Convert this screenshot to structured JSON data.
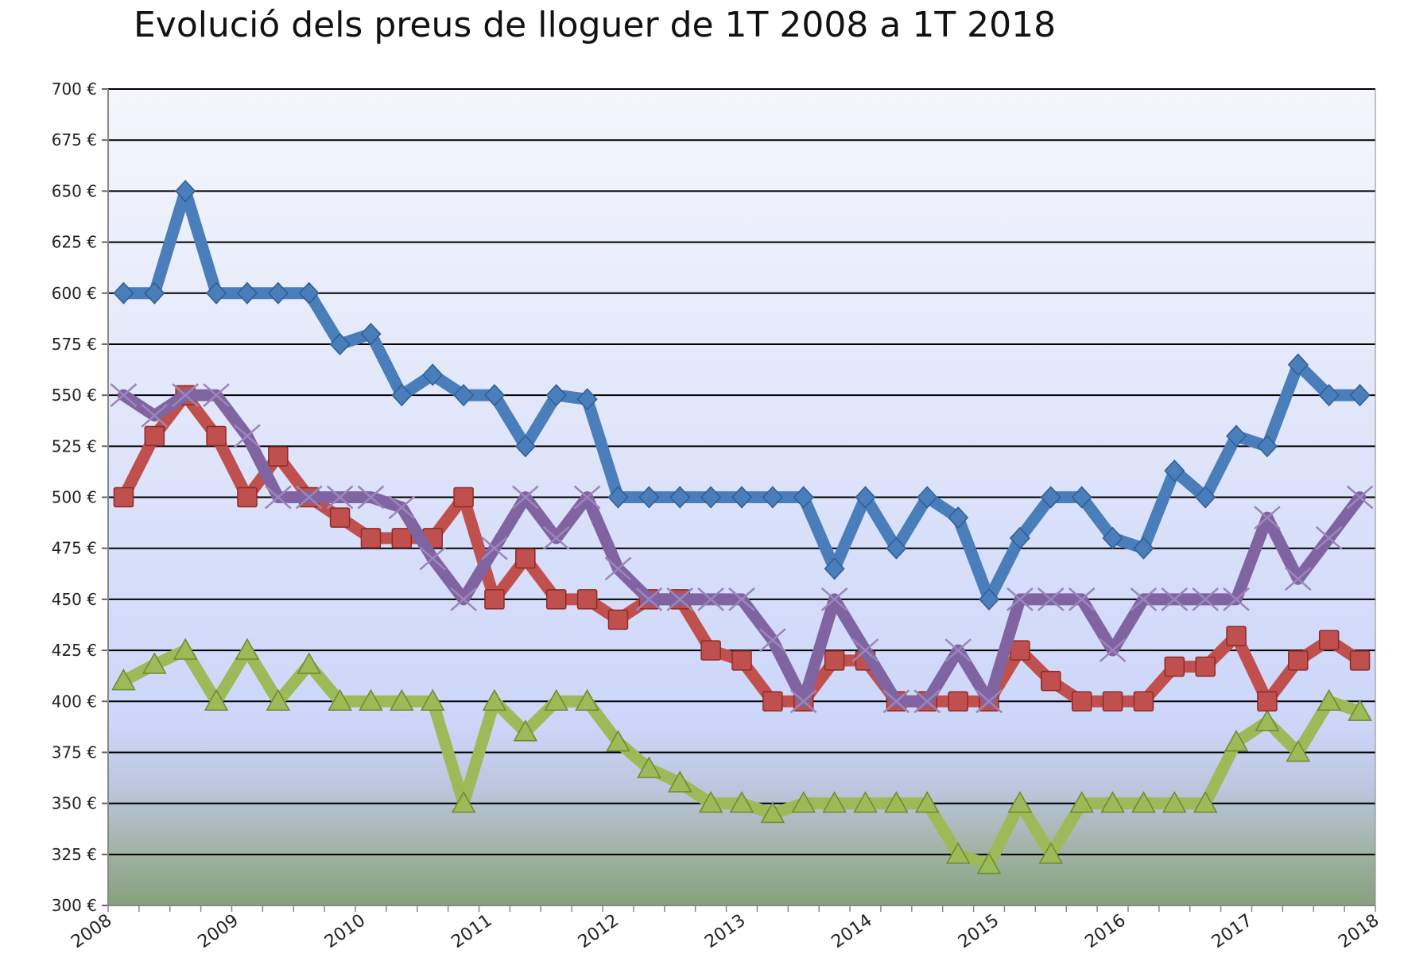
{
  "chart_data": {
    "type": "line",
    "title": "Evolució dels preus de lloguer de 1T 2008 a 1T 2018",
    "xlabel": "",
    "ylabel": "",
    "ylim": [
      300,
      700
    ],
    "y_ticks": [
      "300 €",
      "325 €",
      "350 €",
      "375 €",
      "400 €",
      "425 €",
      "450 €",
      "475 €",
      "500 €",
      "525 €",
      "550 €",
      "575 €",
      "600 €",
      "625 €",
      "650 €",
      "675 €",
      "700 €"
    ],
    "x_ticks": [
      "2008",
      "2009",
      "2010",
      "2011",
      "2012",
      "2013",
      "2014",
      "2015",
      "2016",
      "2017",
      "2018"
    ],
    "grid": true,
    "legend": "none",
    "quarters": 41,
    "series": [
      {
        "marker": "diamond",
        "color": "#4a7ebb",
        "values": [
          600,
          600,
          650,
          600,
          600,
          600,
          600,
          575,
          580,
          550,
          560,
          550,
          550,
          525,
          550,
          548,
          500,
          500,
          500,
          500,
          500,
          500,
          500,
          465,
          500,
          475,
          500,
          490,
          450,
          480,
          500,
          500,
          480,
          475,
          513,
          500,
          530,
          525,
          565,
          550,
          550
        ]
      },
      {
        "marker": "square",
        "color": "#c0504d",
        "values": [
          500,
          530,
          550,
          530,
          500,
          520,
          500,
          490,
          480,
          480,
          480,
          500,
          450,
          470,
          450,
          450,
          440,
          450,
          450,
          425,
          420,
          400,
          400,
          420,
          420,
          400,
          400,
          400,
          400,
          425,
          410,
          400,
          400,
          400,
          417,
          417,
          432,
          400,
          420,
          430,
          420
        ]
      },
      {
        "marker": "x",
        "color": "#8064a2",
        "values": [
          550,
          540,
          550,
          550,
          530,
          500,
          500,
          500,
          500,
          495,
          470,
          450,
          475,
          500,
          480,
          500,
          465,
          450,
          450,
          450,
          450,
          430,
          400,
          450,
          425,
          400,
          400,
          425,
          400,
          450,
          450,
          450,
          425,
          450,
          450,
          450,
          450,
          490,
          460,
          480,
          500
        ]
      },
      {
        "marker": "triangle",
        "color": "#9bbb59",
        "values": [
          410,
          418,
          425,
          400,
          425,
          400,
          418,
          400,
          400,
          400,
          400,
          350,
          400,
          385,
          400,
          400,
          380,
          367,
          360,
          350,
          350,
          345,
          350,
          350,
          350,
          350,
          350,
          325,
          320,
          350,
          325,
          350,
          350,
          350,
          350,
          350,
          380,
          390,
          375,
          400,
          395
        ]
      }
    ]
  }
}
